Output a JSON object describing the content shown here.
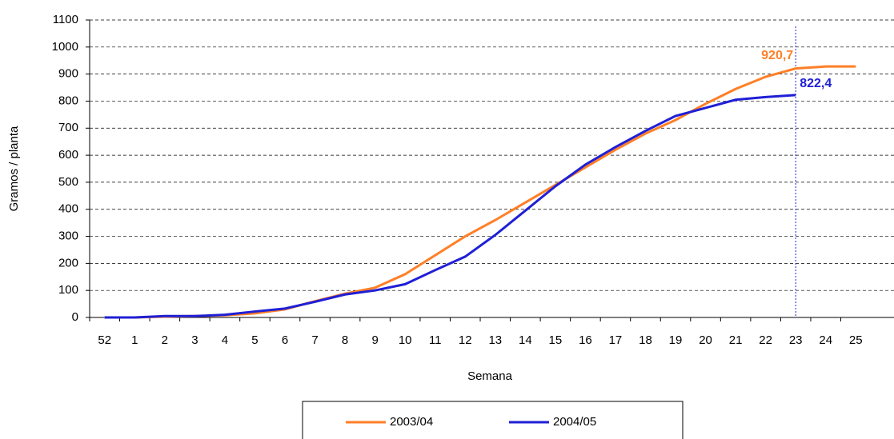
{
  "chart_data": {
    "type": "line",
    "x_label": "Semana",
    "y_label": "Gramos / planta",
    "categories": [
      "52",
      "1",
      "2",
      "3",
      "4",
      "5",
      "6",
      "7",
      "8",
      "9",
      "10",
      "11",
      "12",
      "13",
      "14",
      "15",
      "16",
      "17",
      "18",
      "19",
      "20",
      "21",
      "22",
      "23",
      "24",
      "25"
    ],
    "series": [
      {
        "name": "2003/04",
        "color": "#ff7f27",
        "values": [
          0,
          0,
          3,
          5,
          8,
          15,
          30,
          60,
          88,
          110,
          160,
          230,
          300,
          360,
          425,
          490,
          555,
          620,
          680,
          730,
          790,
          845,
          890,
          920.7,
          928,
          928
        ],
        "value_labels": [
          null,
          null,
          null,
          null,
          null,
          null,
          null,
          null,
          null,
          null,
          null,
          null,
          null,
          null,
          null,
          null,
          null,
          null,
          null,
          null,
          null,
          null,
          null,
          "920,7",
          null,
          null
        ]
      },
      {
        "name": "2004/05",
        "color": "#1f1fd6",
        "values": [
          0,
          0,
          5,
          5,
          10,
          22,
          33,
          58,
          85,
          100,
          123,
          175,
          225,
          305,
          395,
          485,
          565,
          630,
          690,
          745,
          775,
          805,
          815,
          822.4,
          null,
          null
        ],
        "value_labels": [
          null,
          null,
          null,
          null,
          null,
          null,
          null,
          null,
          null,
          null,
          null,
          null,
          null,
          null,
          null,
          null,
          null,
          null,
          null,
          null,
          null,
          null,
          null,
          "822,4",
          null,
          null
        ]
      }
    ],
    "ylim": [
      0,
      1100
    ],
    "yticks": [
      0,
      100,
      200,
      300,
      400,
      500,
      600,
      700,
      800,
      900,
      1000,
      1100
    ],
    "grid": true,
    "legend": "bottom"
  }
}
